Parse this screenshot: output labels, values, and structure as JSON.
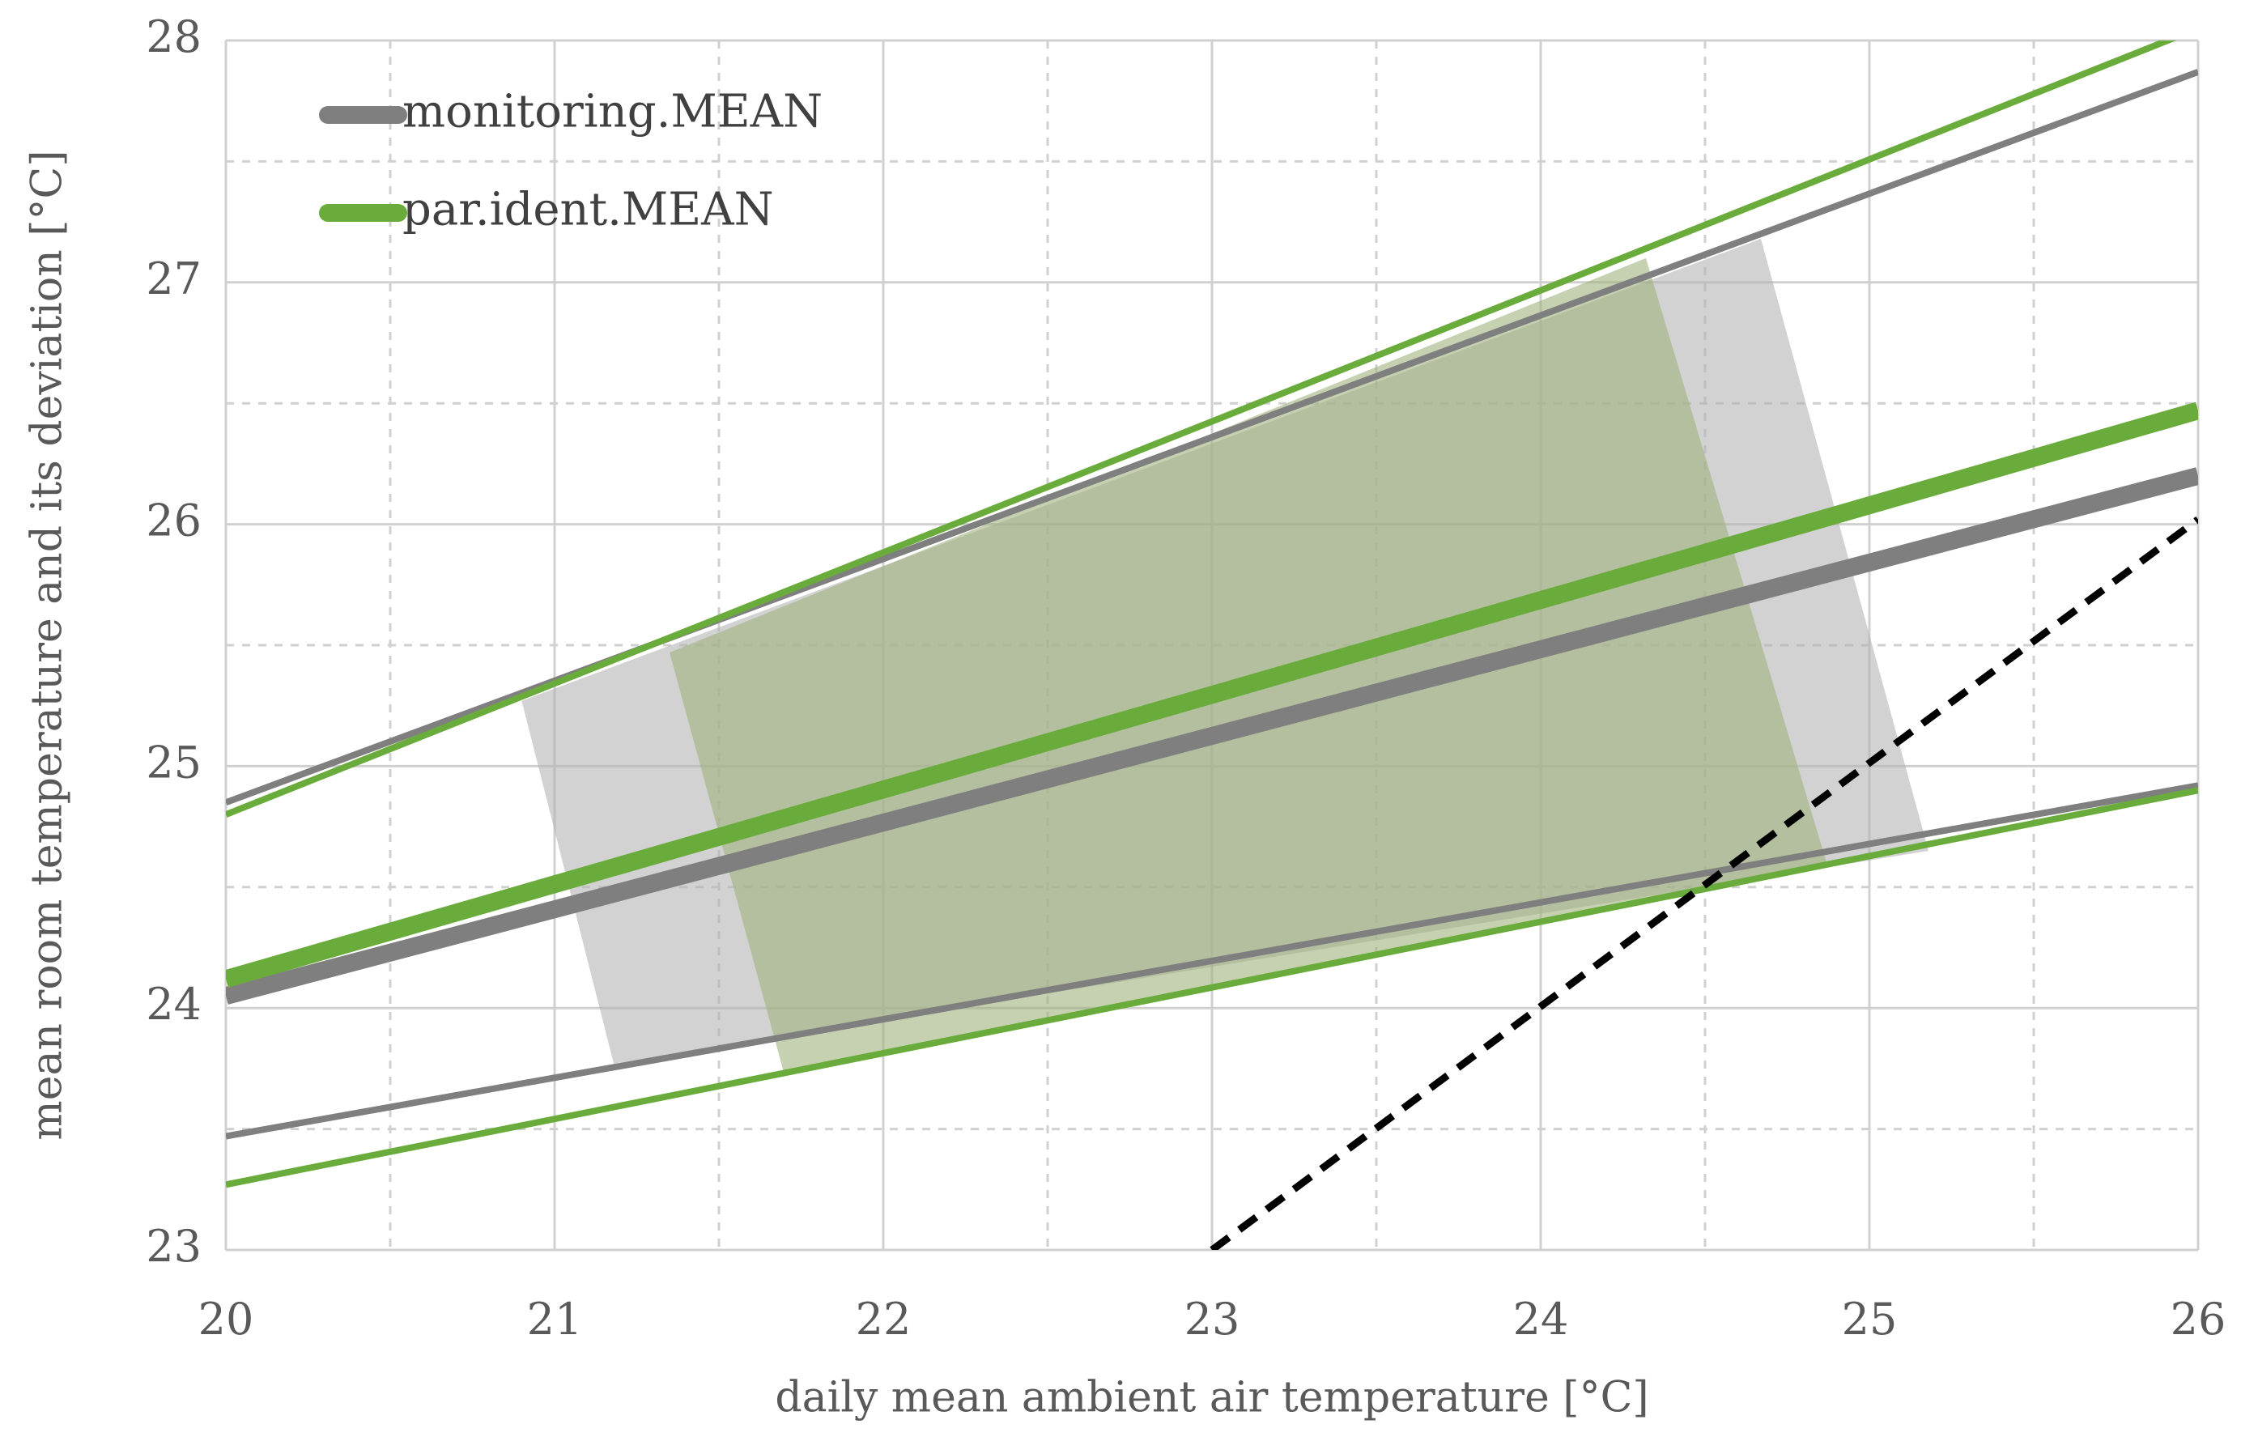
{
  "chart_data": {
    "type": "line",
    "xlabel": "daily mean ambient air temperature [°C]",
    "ylabel": "mean room temperature and its deviation [°C]",
    "xlim": [
      20,
      26
    ],
    "ylim": [
      23,
      28
    ],
    "xticks": [
      20,
      21,
      22,
      23,
      24,
      25,
      26
    ],
    "yticks": [
      23,
      24,
      25,
      26,
      27,
      28
    ],
    "xminorticks": [
      20.5,
      21.5,
      22.5,
      23.5,
      24.5,
      25.5
    ],
    "yminorticks": [
      23.5,
      24.5,
      25.5,
      26.5,
      27.5
    ],
    "grid": true,
    "legend": "upper left",
    "series": [
      {
        "style": "area",
        "color": "#b4b4b4",
        "x": [
          20.9,
          24.67,
          25.18,
          21.18
        ],
        "values": [
          25.27,
          27.18,
          24.65,
          23.77
        ]
      },
      {
        "style": "area",
        "color": "#9fb37c",
        "x": [
          21.35,
          24.32,
          24.87,
          21.7
        ],
        "values": [
          25.47,
          27.1,
          24.6,
          23.72
        ]
      },
      {
        "style": "thin",
        "color": "#7f7f7f",
        "x": [
          20,
          26
        ],
        "values": [
          24.85,
          27.87
        ]
      },
      {
        "style": "thin",
        "color": "#6aac3c",
        "x": [
          20,
          26
        ],
        "values": [
          24.8,
          28.05
        ]
      },
      {
        "style": "thin",
        "color": "#7f7f7f",
        "x": [
          20,
          26
        ],
        "values": [
          23.47,
          24.92
        ]
      },
      {
        "style": "thin",
        "color": "#6aac3c",
        "x": [
          20,
          26
        ],
        "values": [
          23.27,
          24.9
        ]
      },
      {
        "name": "monitoring.MEAN",
        "style": "thick",
        "color": "#7f7f7f",
        "x": [
          20,
          26
        ],
        "values": [
          24.05,
          26.2
        ]
      },
      {
        "name": "par.ident.MEAN",
        "style": "thick",
        "color": "#6aac3c",
        "x": [
          20,
          26
        ],
        "values": [
          24.12,
          26.47
        ]
      },
      {
        "style": "dashed",
        "color": "#000000",
        "x": [
          23,
          26
        ],
        "values": [
          23,
          26.02
        ]
      }
    ]
  }
}
